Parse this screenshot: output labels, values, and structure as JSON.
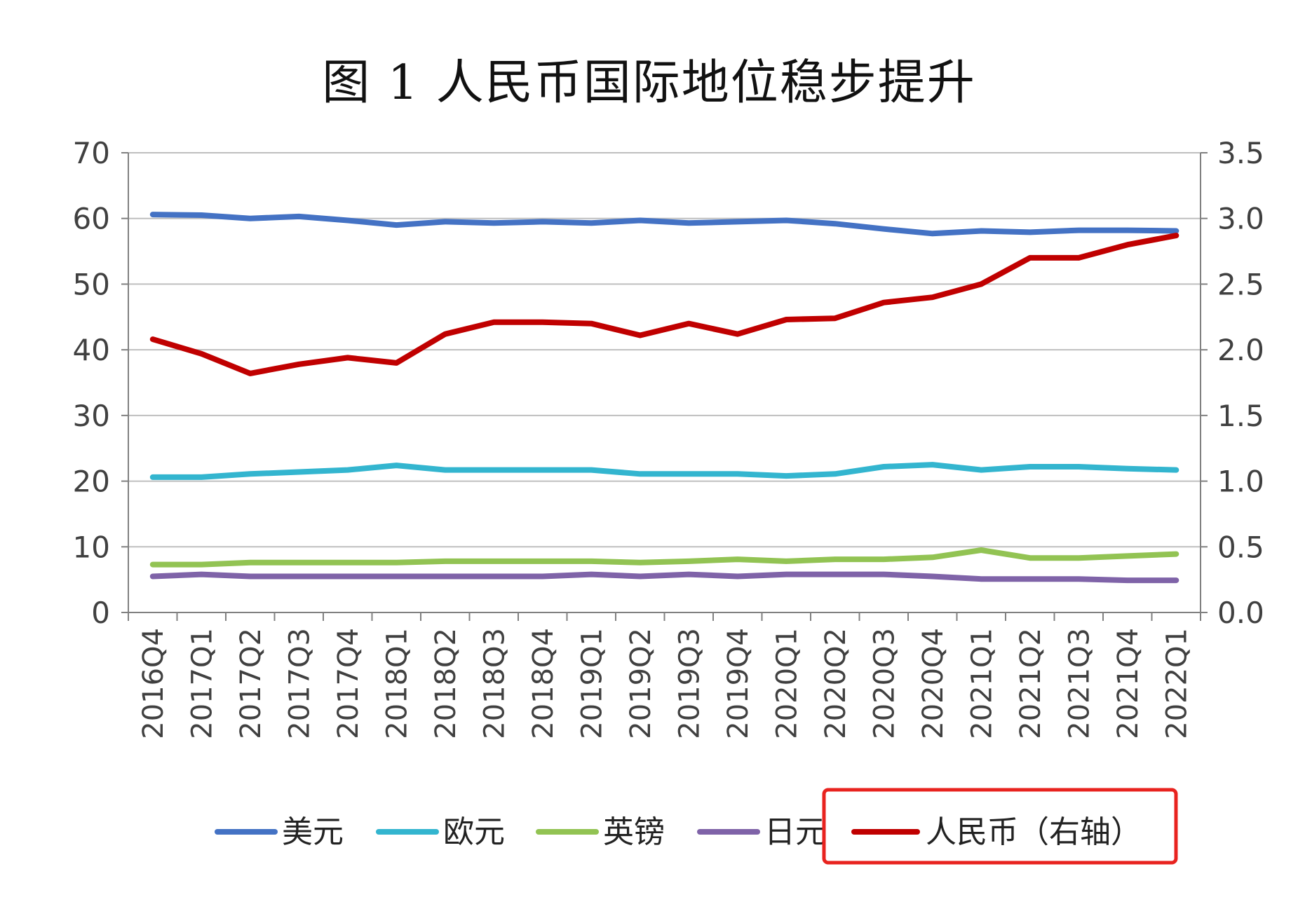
{
  "chart_data": {
    "type": "line",
    "title": "图 1 人民币国际地位稳步提升",
    "xlabel": "",
    "ylabel": "",
    "ylim": [
      0,
      70
    ],
    "y2lim": [
      0,
      3.5
    ],
    "y_ticks": [
      "0",
      "10",
      "20",
      "30",
      "40",
      "50",
      "60",
      "70"
    ],
    "y2_ticks": [
      "0.0",
      "0.5",
      "1.0",
      "1.5",
      "2.0",
      "2.5",
      "3.0",
      "3.5"
    ],
    "grid": true,
    "legend_position": "bottom",
    "categories": [
      "2016Q4",
      "2017Q1",
      "2017Q2",
      "2017Q3",
      "2017Q4",
      "2018Q1",
      "2018Q2",
      "2018Q3",
      "2018Q4",
      "2019Q1",
      "2019Q2",
      "2019Q3",
      "2019Q4",
      "2020Q1",
      "2020Q2",
      "2020Q3",
      "2020Q4",
      "2021Q1",
      "2021Q2",
      "2021Q3",
      "2021Q4",
      "2022Q1"
    ],
    "series": [
      {
        "name": "美元",
        "axis": "left",
        "color": "#4472C4",
        "values": [
          60.6,
          60.5,
          60.0,
          60.3,
          59.7,
          59.0,
          59.5,
          59.3,
          59.5,
          59.3,
          59.7,
          59.3,
          59.5,
          59.7,
          59.2,
          58.4,
          57.7,
          58.1,
          57.9,
          58.2,
          58.2,
          58.1
        ]
      },
      {
        "name": "欧元",
        "axis": "left",
        "color": "#33B5CF",
        "values": [
          20.6,
          20.6,
          21.1,
          21.4,
          21.7,
          22.4,
          21.7,
          21.7,
          21.7,
          21.7,
          21.1,
          21.1,
          21.1,
          20.8,
          21.1,
          22.2,
          22.5,
          21.7,
          22.2,
          22.2,
          21.9,
          21.7
        ]
      },
      {
        "name": "英镑",
        "axis": "left",
        "color": "#92C353",
        "values": [
          7.3,
          7.3,
          7.6,
          7.6,
          7.6,
          7.6,
          7.8,
          7.8,
          7.8,
          7.8,
          7.6,
          7.8,
          8.1,
          7.8,
          8.1,
          8.1,
          8.4,
          9.5,
          8.3,
          8.3,
          8.6,
          8.9
        ]
      },
      {
        "name": "日元",
        "axis": "left",
        "color": "#7F63A8",
        "values": [
          5.5,
          5.8,
          5.5,
          5.5,
          5.5,
          5.5,
          5.5,
          5.5,
          5.5,
          5.8,
          5.5,
          5.8,
          5.5,
          5.8,
          5.8,
          5.8,
          5.5,
          5.1,
          5.1,
          5.1,
          4.9,
          4.9
        ]
      },
      {
        "name": "人民币（右轴）",
        "axis": "right",
        "color": "#C00000",
        "values": [
          2.08,
          1.97,
          1.82,
          1.89,
          1.94,
          1.9,
          2.12,
          2.21,
          2.21,
          2.2,
          2.11,
          2.2,
          2.12,
          2.23,
          2.24,
          2.36,
          2.4,
          2.5,
          2.7,
          2.7,
          2.8,
          2.87
        ]
      }
    ]
  }
}
